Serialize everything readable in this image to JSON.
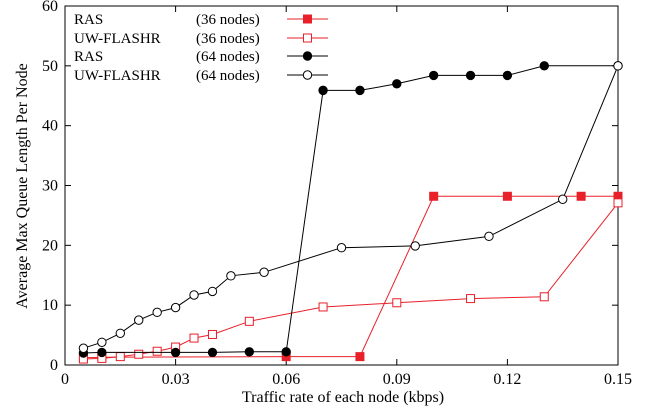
{
  "chart_data": {
    "type": "line",
    "xlabel": "Traffic rate of each node (kbps)",
    "ylabel": "Average Max Queue Length Per Node",
    "xlim": [
      0,
      0.15
    ],
    "ylim": [
      0,
      60
    ],
    "xticks": [
      0,
      0.03,
      0.06,
      0.09,
      0.12,
      0.15
    ],
    "xtick_labels": [
      "0",
      "0.03",
      "0.06",
      "0.09",
      "0.12",
      "0.15"
    ],
    "yticks": [
      0,
      10,
      20,
      30,
      40,
      50,
      60
    ],
    "ytick_labels": [
      "0",
      "10",
      "20",
      "30",
      "40",
      "50",
      "60"
    ],
    "grid": false,
    "legend_position": "top-left",
    "series": [
      {
        "name": "RAS",
        "nodes_label": "(36 nodes)",
        "color": "#e8202a",
        "marker": "filled-square",
        "x": [
          0.005,
          0.01,
          0.06,
          0.08,
          0.1,
          0.12,
          0.14,
          0.15
        ],
        "y": [
          1.2,
          1.3,
          1.4,
          1.4,
          28.2,
          28.2,
          28.2,
          28.2
        ]
      },
      {
        "name": "UW-FLASHR",
        "nodes_label": "(36 nodes)",
        "color": "#e8202a",
        "marker": "open-square",
        "x": [
          0.005,
          0.01,
          0.015,
          0.02,
          0.025,
          0.03,
          0.035,
          0.04,
          0.05,
          0.07,
          0.09,
          0.11,
          0.13,
          0.15
        ],
        "y": [
          1.0,
          1.1,
          1.4,
          1.8,
          2.3,
          3.0,
          4.5,
          5.1,
          7.3,
          9.7,
          10.4,
          11.1,
          11.4,
          27.1
        ]
      },
      {
        "name": "RAS",
        "nodes_label": "(64 nodes)",
        "color": "#000000",
        "marker": "filled-circle",
        "x": [
          0.005,
          0.01,
          0.03,
          0.04,
          0.05,
          0.06,
          0.07,
          0.08,
          0.09,
          0.1,
          0.11,
          0.12,
          0.13,
          0.15
        ],
        "y": [
          2.0,
          2.1,
          2.1,
          2.1,
          2.2,
          2.2,
          45.9,
          45.9,
          47.0,
          48.4,
          48.4,
          48.4,
          50.0,
          50.0
        ]
      },
      {
        "name": "UW-FLASHR",
        "nodes_label": "(64 nodes)",
        "color": "#000000",
        "marker": "open-circle",
        "x": [
          0.005,
          0.01,
          0.015,
          0.02,
          0.025,
          0.03,
          0.035,
          0.04,
          0.045,
          0.054,
          0.075,
          0.095,
          0.115,
          0.135,
          0.15
        ],
        "y": [
          2.8,
          3.8,
          5.3,
          7.5,
          8.8,
          9.6,
          11.7,
          12.3,
          14.9,
          15.5,
          19.6,
          19.9,
          21.5,
          27.7,
          50.0
        ]
      }
    ]
  }
}
